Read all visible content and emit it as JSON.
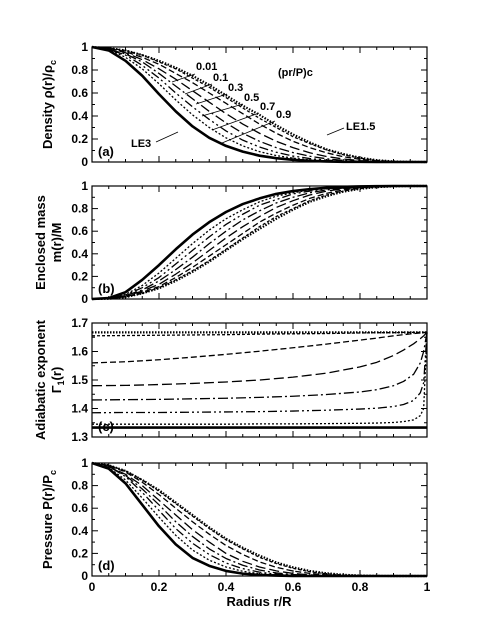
{
  "figure": {
    "xlabel": "Radius r/R",
    "xticks": [
      "0",
      "0.2",
      "0.4",
      "0.6",
      "0.8",
      "1"
    ]
  },
  "chart_data": [
    {
      "type": "line",
      "panel": "(a)",
      "ylabel": "Density ρ(r)/ρc",
      "xlim": [
        0,
        1
      ],
      "ylim": [
        0,
        1
      ],
      "yticks": [
        "0",
        "0.2",
        "0.4",
        "0.6",
        "0.8",
        "1"
      ],
      "param_label": "(pr/P)c",
      "labels": {
        "le3": "LE3",
        "le15": "LE1.5"
      },
      "x": [
        0,
        0.05,
        0.1,
        0.15,
        0.2,
        0.25,
        0.3,
        0.35,
        0.4,
        0.45,
        0.5,
        0.55,
        0.6,
        0.65,
        0.7,
        0.75,
        0.8,
        0.85,
        0.9,
        0.95,
        1.0
      ],
      "series": [
        {
          "name": "LE3",
          "values": [
            1.0,
            0.97,
            0.88,
            0.75,
            0.59,
            0.44,
            0.31,
            0.21,
            0.14,
            0.09,
            0.055,
            0.033,
            0.019,
            0.01,
            0.005,
            0.002,
            0.001,
            0.0,
            0.0,
            0.0,
            0.0
          ]
        },
        {
          "name": "0.9",
          "values": [
            1.0,
            0.98,
            0.91,
            0.81,
            0.68,
            0.54,
            0.41,
            0.3,
            0.21,
            0.14,
            0.09,
            0.056,
            0.033,
            0.018,
            0.009,
            0.004,
            0.001,
            0.0,
            0.0,
            0.0,
            0.0
          ]
        },
        {
          "name": "0.7",
          "values": [
            1.0,
            0.98,
            0.93,
            0.84,
            0.73,
            0.6,
            0.48,
            0.37,
            0.27,
            0.19,
            0.13,
            0.085,
            0.052,
            0.03,
            0.016,
            0.008,
            0.003,
            0.001,
            0.0,
            0.0,
            0.0
          ]
        },
        {
          "name": "0.5",
          "values": [
            1.0,
            0.98,
            0.94,
            0.87,
            0.77,
            0.66,
            0.55,
            0.44,
            0.34,
            0.25,
            0.18,
            0.125,
            0.082,
            0.05,
            0.028,
            0.014,
            0.006,
            0.002,
            0.001,
            0.0,
            0.0
          ]
        },
        {
          "name": "0.3",
          "values": [
            1.0,
            0.99,
            0.95,
            0.89,
            0.81,
            0.72,
            0.62,
            0.52,
            0.42,
            0.33,
            0.25,
            0.18,
            0.125,
            0.08,
            0.048,
            0.026,
            0.012,
            0.005,
            0.001,
            0.0,
            0.0
          ]
        },
        {
          "name": "0.1",
          "values": [
            1.0,
            0.99,
            0.96,
            0.91,
            0.85,
            0.77,
            0.69,
            0.6,
            0.51,
            0.42,
            0.33,
            0.25,
            0.18,
            0.125,
            0.08,
            0.046,
            0.023,
            0.01,
            0.003,
            0.0,
            0.0
          ]
        },
        {
          "name": "0.01",
          "values": [
            1.0,
            0.99,
            0.97,
            0.93,
            0.87,
            0.81,
            0.73,
            0.65,
            0.56,
            0.47,
            0.38,
            0.3,
            0.22,
            0.16,
            0.105,
            0.063,
            0.033,
            0.014,
            0.004,
            0.0,
            0.0
          ]
        },
        {
          "name": "LE1.5",
          "values": [
            1.0,
            0.99,
            0.97,
            0.93,
            0.88,
            0.82,
            0.75,
            0.67,
            0.58,
            0.49,
            0.41,
            0.32,
            0.24,
            0.17,
            0.11,
            0.07,
            0.037,
            0.016,
            0.005,
            0.001,
            0.0
          ]
        }
      ]
    },
    {
      "type": "line",
      "panel": "(b)",
      "ylabel": "Enclosed mass m(r)/M",
      "xlim": [
        0,
        1
      ],
      "ylim": [
        0,
        1
      ],
      "yticks": [
        "0",
        "0.2",
        "0.4",
        "0.6",
        "0.8",
        "1"
      ],
      "x": [
        0,
        0.05,
        0.1,
        0.15,
        0.2,
        0.25,
        0.3,
        0.35,
        0.4,
        0.45,
        0.5,
        0.55,
        0.6,
        0.65,
        0.7,
        0.75,
        0.8,
        0.85,
        0.9,
        0.95,
        1.0
      ],
      "series": [
        {
          "name": "LE3",
          "values": [
            0.0,
            0.008,
            0.06,
            0.17,
            0.3,
            0.44,
            0.57,
            0.68,
            0.77,
            0.84,
            0.89,
            0.93,
            0.955,
            0.972,
            0.984,
            0.992,
            0.996,
            0.998,
            1.0,
            1.0,
            1.0
          ]
        },
        {
          "name": "0.9",
          "values": [
            0.0,
            0.005,
            0.04,
            0.12,
            0.23,
            0.36,
            0.49,
            0.61,
            0.71,
            0.79,
            0.86,
            0.91,
            0.94,
            0.965,
            0.98,
            0.99,
            0.995,
            0.998,
            1.0,
            1.0,
            1.0
          ]
        },
        {
          "name": "0.7",
          "values": [
            0.0,
            0.004,
            0.035,
            0.1,
            0.19,
            0.31,
            0.43,
            0.55,
            0.66,
            0.75,
            0.83,
            0.88,
            0.93,
            0.955,
            0.975,
            0.987,
            0.994,
            0.998,
            1.0,
            1.0,
            1.0
          ]
        },
        {
          "name": "0.5",
          "values": [
            0.0,
            0.003,
            0.03,
            0.08,
            0.16,
            0.26,
            0.37,
            0.49,
            0.6,
            0.7,
            0.78,
            0.85,
            0.9,
            0.94,
            0.965,
            0.982,
            0.992,
            0.997,
            0.999,
            1.0,
            1.0
          ]
        },
        {
          "name": "0.3",
          "values": [
            0.0,
            0.003,
            0.025,
            0.07,
            0.13,
            0.22,
            0.32,
            0.43,
            0.54,
            0.64,
            0.73,
            0.81,
            0.87,
            0.92,
            0.955,
            0.976,
            0.989,
            0.996,
            0.999,
            1.0,
            1.0
          ]
        },
        {
          "name": "0.1",
          "values": [
            0.0,
            0.002,
            0.02,
            0.06,
            0.11,
            0.19,
            0.28,
            0.38,
            0.48,
            0.58,
            0.68,
            0.76,
            0.83,
            0.89,
            0.935,
            0.965,
            0.984,
            0.994,
            0.998,
            1.0,
            1.0
          ]
        },
        {
          "name": "0.01",
          "values": [
            0.0,
            0.002,
            0.018,
            0.05,
            0.1,
            0.17,
            0.25,
            0.34,
            0.44,
            0.54,
            0.64,
            0.73,
            0.8,
            0.87,
            0.92,
            0.955,
            0.978,
            0.991,
            0.997,
            1.0,
            1.0
          ]
        },
        {
          "name": "LE1.5",
          "values": [
            0.0,
            0.002,
            0.016,
            0.05,
            0.095,
            0.16,
            0.24,
            0.33,
            0.43,
            0.53,
            0.62,
            0.71,
            0.79,
            0.86,
            0.91,
            0.95,
            0.975,
            0.99,
            0.997,
            1.0,
            1.0
          ]
        }
      ]
    },
    {
      "type": "line",
      "panel": "(c)",
      "ylabel": "Adiabatic exponent Γ1(r)",
      "xlim": [
        0,
        1
      ],
      "ylim": [
        1.3,
        1.7
      ],
      "yticks": [
        "1.3",
        "1.4",
        "1.5",
        "1.6",
        "1.7"
      ],
      "x": [
        0,
        0.1,
        0.2,
        0.3,
        0.4,
        0.5,
        0.6,
        0.7,
        0.8,
        0.85,
        0.9,
        0.93,
        0.96,
        0.98,
        0.99,
        1.0
      ],
      "series": [
        {
          "name": "LE3",
          "values": [
            1.333,
            1.333,
            1.333,
            1.333,
            1.333,
            1.333,
            1.333,
            1.333,
            1.333,
            1.333,
            1.333,
            1.333,
            1.333,
            1.333,
            1.333,
            1.333
          ]
        },
        {
          "name": "0.9",
          "values": [
            1.345,
            1.345,
            1.345,
            1.345,
            1.345,
            1.346,
            1.346,
            1.347,
            1.348,
            1.349,
            1.351,
            1.354,
            1.36,
            1.375,
            1.4,
            1.667
          ]
        },
        {
          "name": "0.7",
          "values": [
            1.385,
            1.386,
            1.386,
            1.387,
            1.388,
            1.389,
            1.391,
            1.394,
            1.398,
            1.401,
            1.407,
            1.414,
            1.428,
            1.455,
            1.49,
            1.667
          ]
        },
        {
          "name": "0.5",
          "values": [
            1.43,
            1.431,
            1.432,
            1.434,
            1.436,
            1.439,
            1.443,
            1.449,
            1.458,
            1.466,
            1.48,
            1.495,
            1.52,
            1.56,
            1.6,
            1.667
          ]
        },
        {
          "name": "0.3",
          "values": [
            1.48,
            1.481,
            1.484,
            1.488,
            1.493,
            1.5,
            1.51,
            1.524,
            1.546,
            1.562,
            1.586,
            1.605,
            1.627,
            1.645,
            1.655,
            1.667
          ]
        },
        {
          "name": "0.1",
          "values": [
            1.56,
            1.564,
            1.571,
            1.58,
            1.59,
            1.601,
            1.613,
            1.626,
            1.64,
            1.647,
            1.655,
            1.659,
            1.663,
            1.665,
            1.666,
            1.667
          ]
        },
        {
          "name": "0.01",
          "values": [
            1.655,
            1.656,
            1.657,
            1.658,
            1.659,
            1.661,
            1.662,
            1.663,
            1.665,
            1.666,
            1.666,
            1.667,
            1.667,
            1.667,
            1.667,
            1.667
          ]
        },
        {
          "name": "LE1.5",
          "values": [
            1.667,
            1.667,
            1.667,
            1.667,
            1.667,
            1.667,
            1.667,
            1.667,
            1.667,
            1.667,
            1.667,
            1.667,
            1.667,
            1.667,
            1.667,
            1.667
          ]
        }
      ]
    },
    {
      "type": "line",
      "panel": "(d)",
      "ylabel": "Pressure P(r)/Pc",
      "xlim": [
        0,
        1
      ],
      "ylim": [
        0,
        1
      ],
      "yticks": [
        "0",
        "0.2",
        "0.4",
        "0.6",
        "0.8",
        "1"
      ],
      "x": [
        0,
        0.05,
        0.1,
        0.15,
        0.2,
        0.25,
        0.3,
        0.35,
        0.4,
        0.45,
        0.5,
        0.55,
        0.6,
        0.65,
        0.7,
        0.75,
        0.8,
        0.85,
        0.9,
        0.95,
        1.0
      ],
      "series": [
        {
          "name": "LE3",
          "values": [
            1.0,
            0.95,
            0.82,
            0.63,
            0.44,
            0.28,
            0.16,
            0.09,
            0.045,
            0.021,
            0.009,
            0.004,
            0.001,
            0.0,
            0.0,
            0.0,
            0.0,
            0.0,
            0.0,
            0.0,
            0.0
          ]
        },
        {
          "name": "0.9",
          "values": [
            1.0,
            0.96,
            0.85,
            0.69,
            0.52,
            0.36,
            0.23,
            0.14,
            0.08,
            0.042,
            0.02,
            0.009,
            0.004,
            0.001,
            0.0,
            0.0,
            0.0,
            0.0,
            0.0,
            0.0,
            0.0
          ]
        },
        {
          "name": "0.7",
          "values": [
            1.0,
            0.97,
            0.88,
            0.74,
            0.58,
            0.42,
            0.29,
            0.19,
            0.115,
            0.065,
            0.034,
            0.016,
            0.007,
            0.003,
            0.001,
            0.0,
            0.0,
            0.0,
            0.0,
            0.0,
            0.0
          ]
        },
        {
          "name": "0.5",
          "values": [
            1.0,
            0.97,
            0.89,
            0.77,
            0.63,
            0.48,
            0.35,
            0.24,
            0.155,
            0.095,
            0.053,
            0.027,
            0.013,
            0.005,
            0.002,
            0.0,
            0.0,
            0.0,
            0.0,
            0.0,
            0.0
          ]
        },
        {
          "name": "0.3",
          "values": [
            1.0,
            0.97,
            0.9,
            0.8,
            0.67,
            0.54,
            0.41,
            0.3,
            0.2,
            0.13,
            0.08,
            0.045,
            0.023,
            0.01,
            0.004,
            0.001,
            0.0,
            0.0,
            0.0,
            0.0,
            0.0
          ]
        },
        {
          "name": "0.1",
          "values": [
            1.0,
            0.98,
            0.92,
            0.83,
            0.72,
            0.6,
            0.48,
            0.37,
            0.27,
            0.19,
            0.125,
            0.077,
            0.044,
            0.023,
            0.01,
            0.004,
            0.001,
            0.0,
            0.0,
            0.0,
            0.0
          ]
        },
        {
          "name": "0.01",
          "values": [
            1.0,
            0.98,
            0.93,
            0.85,
            0.75,
            0.64,
            0.53,
            0.42,
            0.32,
            0.24,
            0.165,
            0.11,
            0.068,
            0.038,
            0.019,
            0.008,
            0.003,
            0.001,
            0.0,
            0.0,
            0.0
          ]
        },
        {
          "name": "LE1.5",
          "values": [
            1.0,
            0.98,
            0.93,
            0.85,
            0.76,
            0.65,
            0.54,
            0.43,
            0.33,
            0.25,
            0.18,
            0.12,
            0.077,
            0.045,
            0.024,
            0.011,
            0.004,
            0.001,
            0.0,
            0.0,
            0.0
          ]
        }
      ]
    }
  ]
}
